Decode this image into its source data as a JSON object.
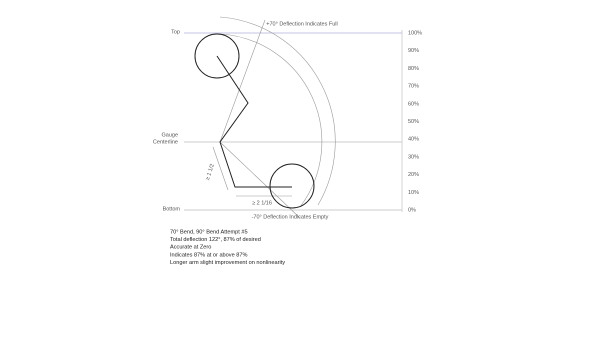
{
  "labels": {
    "top": "Top",
    "centerline": [
      "Gauge",
      "Centerline"
    ],
    "bottom": "Bottom"
  },
  "annotations": {
    "full": "+70° Deflection Indicates Full",
    "empty": "-70° Deflection Indicates Empty",
    "arm_length": "≥ 2 1/16",
    "arm_offset": "≥ 1 1/2"
  },
  "scale": [
    "100%",
    "90%",
    "80%",
    "70%",
    "60%",
    "50%",
    "40%",
    "30%",
    "20%",
    "10%",
    "0%"
  ],
  "notes": [
    "70° Bend, 90° Bend Attempt #5",
    "Total deflection 122°, 87% of desired",
    "Accurate at Zero",
    "Indicates 87% at or above 87%",
    "Longer arm slight improvement on nonlinearity"
  ]
}
